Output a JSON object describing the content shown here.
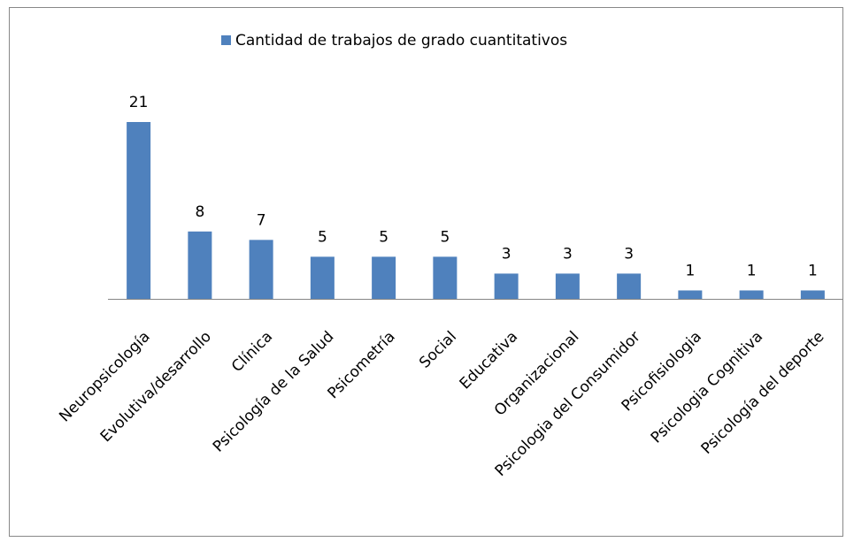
{
  "chart_data": {
    "type": "bar",
    "categories": [
      "Neuropsicología",
      "Evolutiva/desarrollo",
      "Clínica",
      "Psicología de la Salud",
      "Psicometría",
      "Social",
      "Educativa",
      "Organizacional",
      "Psicologia del Consumidor",
      "Psicofisiologia",
      "Psicologia Cognitiva",
      "Psicología del deporte"
    ],
    "series": [
      {
        "name": "Cantidad de trabajos de grado cuantitativos",
        "color": "#4f81bd",
        "values": [
          21,
          8,
          7,
          5,
          5,
          5,
          3,
          3,
          3,
          1,
          1,
          1
        ]
      }
    ],
    "legend": "top"
  }
}
